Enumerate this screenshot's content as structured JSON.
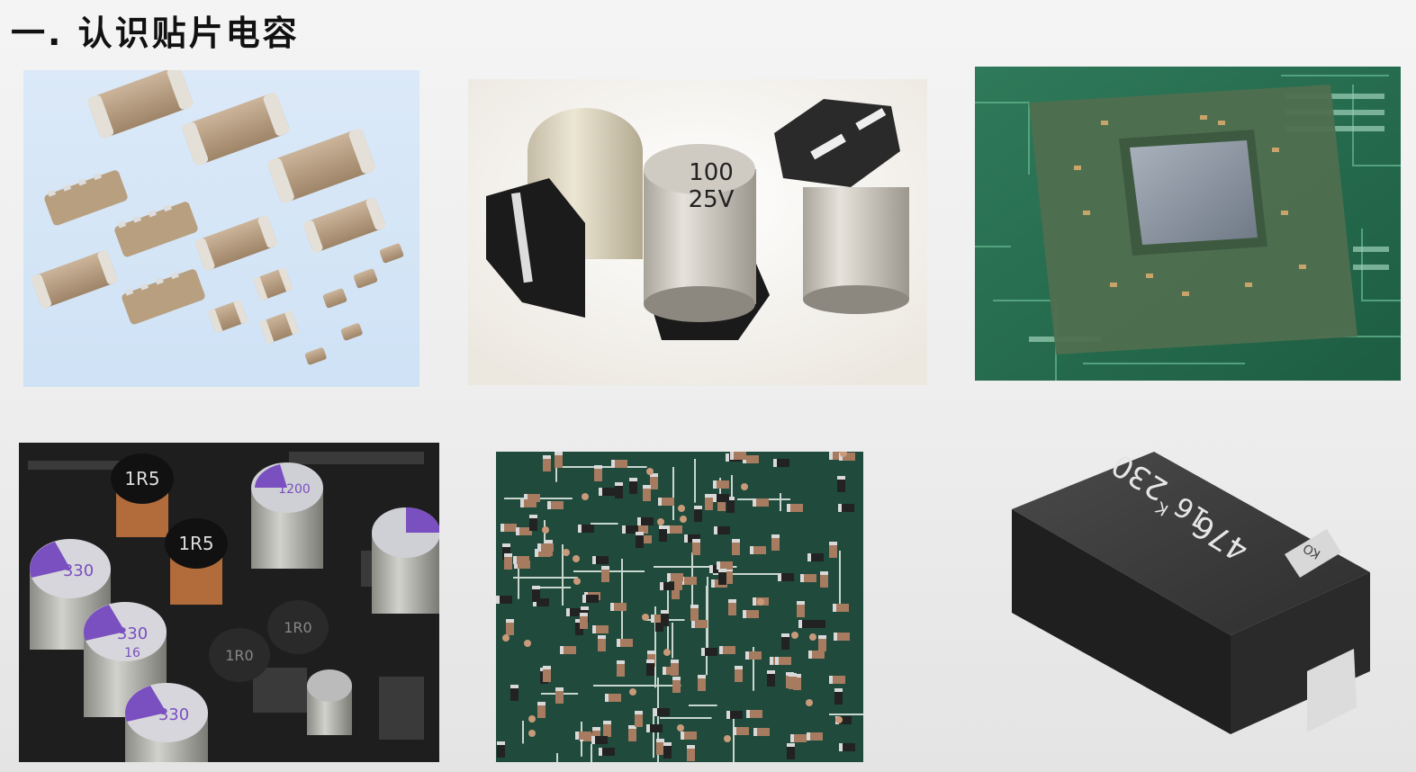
{
  "page": {
    "title": "一. 认识贴片电容"
  },
  "images": {
    "ceramic": {
      "label": "ceramic chip capacitors"
    },
    "electrolytic": {
      "value_text": "100",
      "voltage_text": "25V"
    },
    "pcb_chip": {
      "label": "processor chip on PCB"
    },
    "motherboard": {
      "inductor_label_a": "1R5",
      "inductor_label_b": "1R5",
      "inductor_label_c": "1R0",
      "inductor_label_d": "1R0",
      "cap_code_a": "330",
      "cap_code_b": "330",
      "cap_code_c": "330",
      "cap_volt": "16",
      "cap_code_big": "1200"
    },
    "smd_board": {
      "label": "SMD components on PCB"
    },
    "tantalum": {
      "line1": "476",
      "line2": "16",
      "line3": "K",
      "line4": "230",
      "marker": "KO"
    }
  }
}
